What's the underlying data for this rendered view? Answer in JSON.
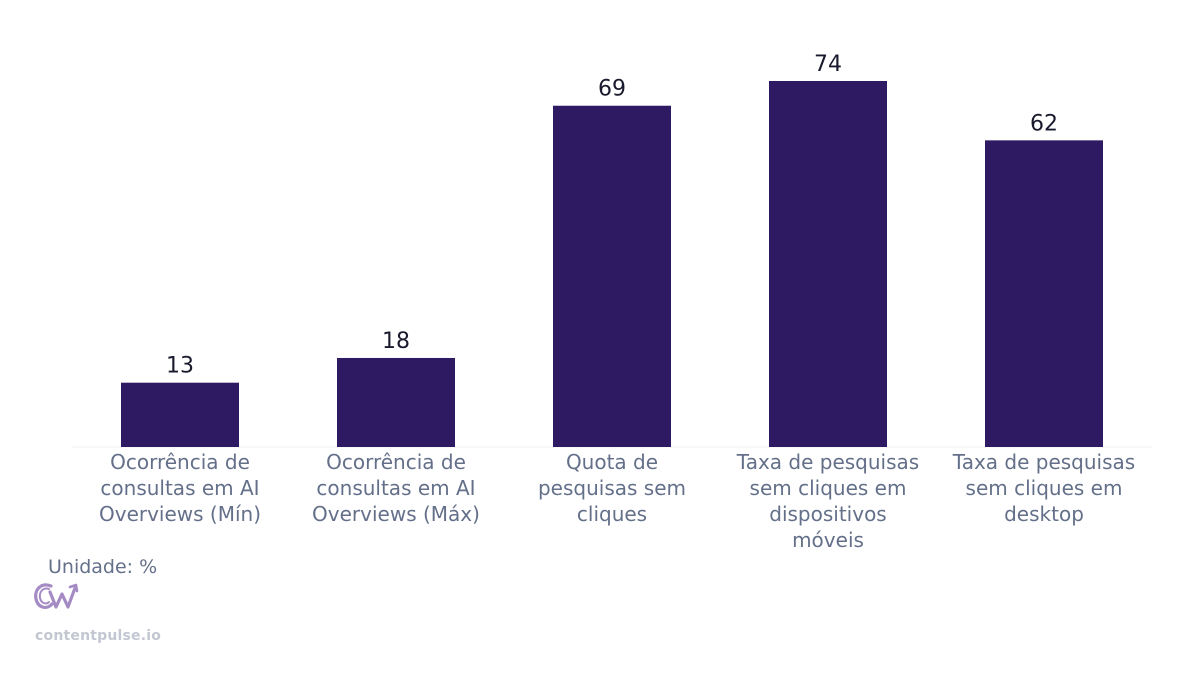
{
  "chart_data": {
    "type": "bar",
    "categories": [
      [
        "Ocorrência de",
        "consultas em AI",
        "Overviews (Mín)"
      ],
      [
        "Ocorrência de",
        "consultas em AI",
        "Overviews (Máx)"
      ],
      [
        "Quota de",
        "pesquisas sem",
        "cliques"
      ],
      [
        "Taxa de pesquisas",
        "sem cliques em",
        "dispositivos",
        "móveis"
      ],
      [
        "Taxa de pesquisas",
        "sem cliques em",
        "desktop"
      ]
    ],
    "values": [
      13,
      18,
      69,
      74,
      62
    ],
    "ylim": [
      0,
      74
    ],
    "grid": false,
    "legend": false,
    "bar_color": "#2d1a63",
    "value_label_color": "#1a1a2e",
    "tick_label_color": "#64708a"
  },
  "footer": {
    "unit": "Unidade: %",
    "logo_text": "CW",
    "logo_color": "#a58bc4",
    "site": "contentpulse.io"
  }
}
